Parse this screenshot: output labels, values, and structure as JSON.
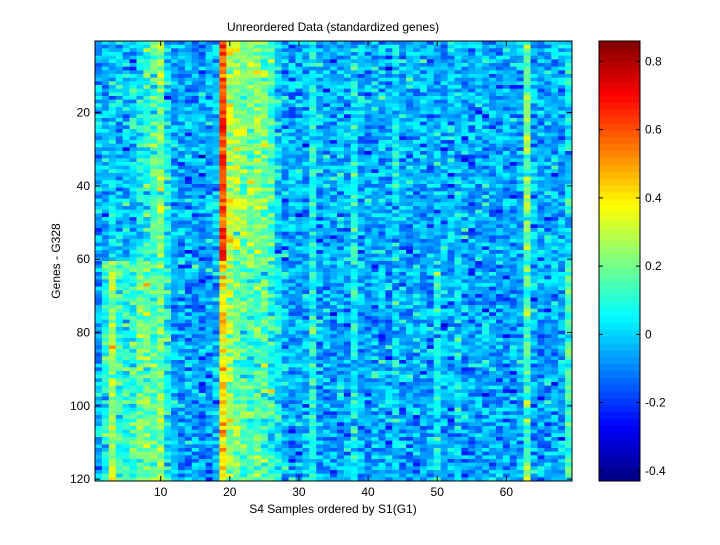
{
  "chart_data": {
    "type": "heatmap",
    "title": "Unreordered Data (standardized genes)",
    "xlabel": "S4 Samples ordered by S1(G1)",
    "ylabel": "Genes - G328",
    "n_columns": 69,
    "n_rows": 120,
    "xlim": [
      0.5,
      69.5
    ],
    "ylim": [
      0.5,
      120.5
    ],
    "xticks": [
      10,
      20,
      30,
      40,
      50,
      60
    ],
    "yticks": [
      20,
      40,
      60,
      80,
      100,
      120
    ],
    "colormap": "jet",
    "clim": [
      -0.43,
      0.86
    ],
    "colorbar_ticks": [
      -0.4,
      -0.2,
      0,
      0.2,
      0.4,
      0.6,
      0.8
    ],
    "approx_column_means_rows_1_60": [
      -0.05,
      -0.05,
      0.0,
      0.0,
      -0.02,
      0.0,
      0.05,
      0.1,
      0.15,
      0.22,
      0.05,
      -0.05,
      -0.06,
      -0.05,
      -0.07,
      -0.06,
      -0.05,
      -0.04,
      0.6,
      0.3,
      0.25,
      0.22,
      0.2,
      0.25,
      0.2,
      0.15,
      0.0,
      -0.05,
      -0.06,
      -0.04,
      -0.05,
      0.05,
      -0.06,
      -0.05,
      -0.07,
      -0.05,
      -0.04,
      0.06,
      -0.05,
      -0.06,
      -0.04,
      -0.05,
      -0.06,
      0.03,
      -0.05,
      -0.07,
      -0.05,
      -0.04,
      -0.06,
      -0.05,
      -0.06,
      -0.05,
      0.0,
      -0.05,
      -0.06,
      -0.04,
      -0.05,
      -0.06,
      -0.05,
      -0.05,
      -0.06,
      -0.04,
      0.2,
      -0.04,
      -0.05,
      -0.06,
      -0.05,
      -0.04,
      0.03
    ],
    "approx_column_means_rows_61_120": [
      -0.05,
      0.08,
      0.25,
      0.12,
      0.08,
      0.1,
      0.2,
      0.2,
      0.15,
      0.2,
      0.05,
      -0.05,
      -0.07,
      -0.06,
      -0.08,
      -0.07,
      -0.06,
      -0.05,
      0.4,
      0.25,
      0.2,
      0.15,
      0.15,
      0.15,
      0.15,
      0.1,
      0.05,
      -0.05,
      -0.06,
      -0.05,
      -0.04,
      0.08,
      -0.06,
      -0.05,
      -0.07,
      -0.05,
      -0.05,
      0.05,
      -0.06,
      -0.07,
      -0.05,
      -0.06,
      -0.06,
      0.0,
      -0.06,
      -0.07,
      -0.06,
      -0.05,
      -0.07,
      0.05,
      -0.06,
      -0.07,
      0.0,
      -0.06,
      -0.07,
      -0.05,
      -0.06,
      -0.07,
      -0.06,
      -0.06,
      -0.06,
      -0.05,
      0.15,
      -0.05,
      -0.06,
      -0.07,
      -0.05,
      -0.05,
      0.12
    ],
    "approx_noise_sd": 0.08
  }
}
